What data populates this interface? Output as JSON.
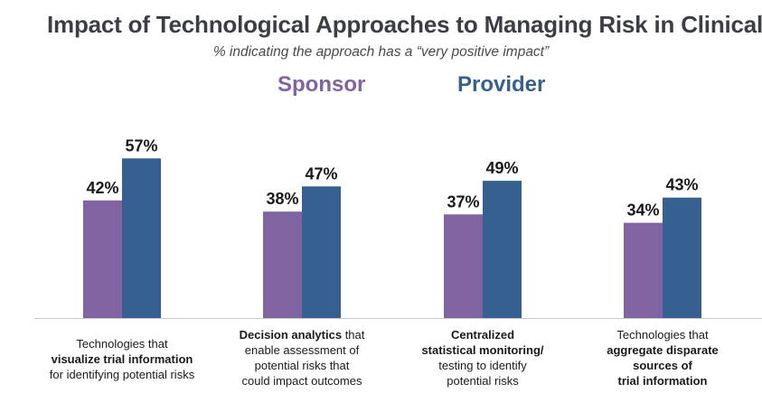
{
  "chart_data": {
    "type": "bar",
    "title": "Impact of Technological Approaches to Managing Risk in Clinical Trials",
    "subtitle": "% indicating the approach has a “very positive impact”",
    "categories": [
      "Technologies that visualize trial information for identifying potential risks",
      "Decision analytics that enable assessment of potential risks that could impact outcomes",
      "Centralized statistical monitoring/ testing to identify potential risks",
      "Technologies that aggregate disparate sources of trial information"
    ],
    "series": [
      {
        "name": "Sponsor",
        "color": "#8064a2",
        "values": [
          42,
          38,
          37,
          34
        ],
        "labels": [
          "42%",
          "38%",
          "37%",
          "34%"
        ]
      },
      {
        "name": "Provider",
        "color": "#35608f",
        "values": [
          57,
          47,
          49,
          43
        ],
        "labels": [
          "57%",
          "47%",
          "49%",
          "43%"
        ]
      }
    ],
    "ylim": [
      0,
      100
    ],
    "grid": false,
    "legend_position": "top-center"
  },
  "category_lines": [
    [
      [
        {
          "t": "Technologies that",
          "b": false
        }
      ],
      [
        {
          "t": "visualize trial information",
          "b": true
        }
      ],
      [
        {
          "t": "for identifying potential risks",
          "b": false
        }
      ]
    ],
    [
      [
        {
          "t": "Decision analytics",
          "b": true
        },
        {
          "t": " that",
          "b": false
        }
      ],
      [
        {
          "t": "enable assessment of",
          "b": false
        }
      ],
      [
        {
          "t": "potential risks that",
          "b": false
        }
      ],
      [
        {
          "t": "could impact outcomes",
          "b": false
        }
      ]
    ],
    [
      [
        {
          "t": "Centralized",
          "b": true
        }
      ],
      [
        {
          "t": "statistical monitoring/",
          "b": true
        }
      ],
      [
        {
          "t": "testing to identify",
          "b": false
        }
      ],
      [
        {
          "t": "potential risks",
          "b": false
        }
      ]
    ],
    [
      [
        {
          "t": "Technologies that",
          "b": false
        }
      ],
      [
        {
          "t": "aggregate disparate",
          "b": true
        }
      ],
      [
        {
          "t": "sources of",
          "b": true
        }
      ],
      [
        {
          "t": "trial information",
          "b": true
        }
      ]
    ]
  ]
}
